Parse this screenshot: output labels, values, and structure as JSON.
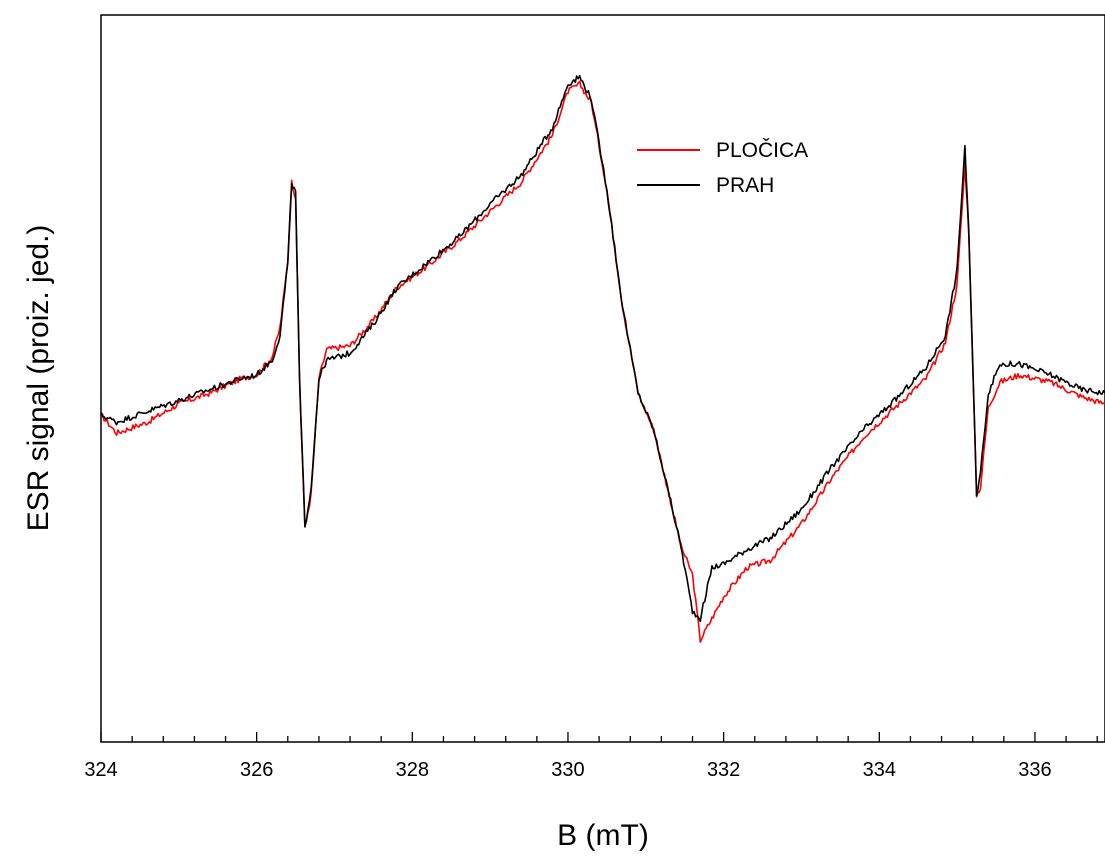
{
  "chart_data": {
    "type": "line",
    "xlabel": "B (mT)",
    "ylabel": "ESR signal (proiz. jed.)",
    "xlim": [
      324,
      336.9
    ],
    "ylim": [
      0,
      1
    ],
    "x_major_ticks": [
      324,
      326,
      328,
      330,
      332,
      334,
      336
    ],
    "x_minor_step": 0.4,
    "y_ticks_shown": false,
    "grid": false,
    "legend_position": "top-right",
    "series": [
      {
        "name": "PLOČICA",
        "color": "#ff0000",
        "points": [
          [
            324.0,
            0.45
          ],
          [
            324.2,
            0.425
          ],
          [
            324.6,
            0.44
          ],
          [
            325.0,
            0.465
          ],
          [
            325.4,
            0.48
          ],
          [
            325.8,
            0.5
          ],
          [
            326.0,
            0.505
          ],
          [
            326.2,
            0.53
          ],
          [
            326.3,
            0.57
          ],
          [
            326.4,
            0.66
          ],
          [
            326.45,
            0.77
          ],
          [
            326.5,
            0.75
          ],
          [
            326.55,
            0.5
          ],
          [
            326.62,
            0.295
          ],
          [
            326.7,
            0.34
          ],
          [
            326.8,
            0.5
          ],
          [
            326.9,
            0.54
          ],
          [
            327.2,
            0.545
          ],
          [
            327.5,
            0.58
          ],
          [
            327.8,
            0.625
          ],
          [
            328.2,
            0.655
          ],
          [
            328.6,
            0.69
          ],
          [
            329.0,
            0.73
          ],
          [
            329.4,
            0.77
          ],
          [
            329.8,
            0.835
          ],
          [
            330.0,
            0.895
          ],
          [
            330.15,
            0.905
          ],
          [
            330.3,
            0.88
          ],
          [
            330.5,
            0.76
          ],
          [
            330.7,
            0.6
          ],
          [
            330.9,
            0.48
          ],
          [
            331.1,
            0.43
          ],
          [
            331.3,
            0.34
          ],
          [
            331.45,
            0.27
          ],
          [
            331.6,
            0.23
          ],
          [
            331.7,
            0.14
          ],
          [
            331.85,
            0.17
          ],
          [
            332.0,
            0.2
          ],
          [
            332.3,
            0.24
          ],
          [
            332.6,
            0.25
          ],
          [
            333.0,
            0.3
          ],
          [
            333.4,
            0.365
          ],
          [
            333.8,
            0.42
          ],
          [
            334.2,
            0.46
          ],
          [
            334.6,
            0.5
          ],
          [
            334.85,
            0.55
          ],
          [
            335.0,
            0.63
          ],
          [
            335.1,
            0.795
          ],
          [
            335.15,
            0.7
          ],
          [
            335.25,
            0.34
          ],
          [
            335.3,
            0.35
          ],
          [
            335.4,
            0.46
          ],
          [
            335.55,
            0.495
          ],
          [
            335.8,
            0.505
          ],
          [
            336.2,
            0.495
          ],
          [
            336.6,
            0.475
          ],
          [
            336.9,
            0.465
          ]
        ]
      },
      {
        "name": "PRAH",
        "color": "#000000",
        "points": [
          [
            324.0,
            0.45
          ],
          [
            324.2,
            0.44
          ],
          [
            324.6,
            0.455
          ],
          [
            325.0,
            0.47
          ],
          [
            325.4,
            0.485
          ],
          [
            325.8,
            0.5
          ],
          [
            326.0,
            0.505
          ],
          [
            326.2,
            0.525
          ],
          [
            326.3,
            0.56
          ],
          [
            326.4,
            0.66
          ],
          [
            326.45,
            0.77
          ],
          [
            326.5,
            0.755
          ],
          [
            326.55,
            0.5
          ],
          [
            326.62,
            0.295
          ],
          [
            326.7,
            0.35
          ],
          [
            326.8,
            0.5
          ],
          [
            326.9,
            0.525
          ],
          [
            327.2,
            0.535
          ],
          [
            327.5,
            0.575
          ],
          [
            327.8,
            0.625
          ],
          [
            328.2,
            0.66
          ],
          [
            328.6,
            0.695
          ],
          [
            329.0,
            0.74
          ],
          [
            329.4,
            0.78
          ],
          [
            329.8,
            0.845
          ],
          [
            330.0,
            0.905
          ],
          [
            330.15,
            0.915
          ],
          [
            330.3,
            0.885
          ],
          [
            330.5,
            0.76
          ],
          [
            330.7,
            0.6
          ],
          [
            330.9,
            0.48
          ],
          [
            331.1,
            0.43
          ],
          [
            331.3,
            0.34
          ],
          [
            331.45,
            0.27
          ],
          [
            331.6,
            0.18
          ],
          [
            331.7,
            0.17
          ],
          [
            331.85,
            0.24
          ],
          [
            332.0,
            0.245
          ],
          [
            332.3,
            0.265
          ],
          [
            332.6,
            0.28
          ],
          [
            333.0,
            0.32
          ],
          [
            333.4,
            0.38
          ],
          [
            333.8,
            0.43
          ],
          [
            334.2,
            0.47
          ],
          [
            334.6,
            0.515
          ],
          [
            334.85,
            0.56
          ],
          [
            335.0,
            0.65
          ],
          [
            335.1,
            0.82
          ],
          [
            335.15,
            0.7
          ],
          [
            335.25,
            0.34
          ],
          [
            335.3,
            0.37
          ],
          [
            335.4,
            0.48
          ],
          [
            335.55,
            0.52
          ],
          [
            335.8,
            0.52
          ],
          [
            336.2,
            0.505
          ],
          [
            336.6,
            0.485
          ],
          [
            336.9,
            0.48
          ]
        ]
      }
    ]
  }
}
